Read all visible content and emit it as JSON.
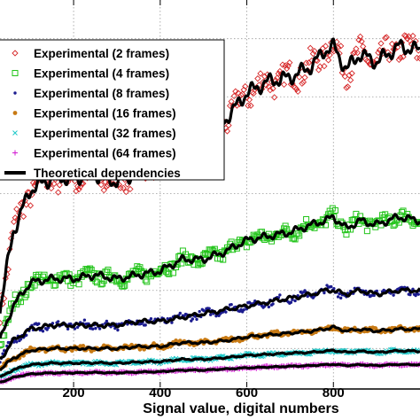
{
  "chart_data": {
    "type": "scatter",
    "xlabel": "Signal value, digital numbers",
    "ylabel": "",
    "xlim": [
      30,
      1000
    ],
    "ylim": [
      0,
      1
    ],
    "x_ticks": [
      200,
      400,
      600,
      800
    ],
    "x_tick_labels": [
      "200",
      "400",
      "600",
      "800"
    ],
    "grid": true,
    "legend_position": "top-left",
    "series": [
      {
        "name": "Experimental (2 frames)",
        "marker": "diamond-open",
        "color": "#d62728",
        "x": [
          30,
          60,
          100,
          150,
          200,
          250,
          300,
          350,
          400,
          450,
          500,
          550,
          600,
          650,
          700,
          750,
          780,
          800,
          830,
          860,
          900,
          950,
          1000
        ],
        "y": [
          0.2,
          0.4,
          0.51,
          0.54,
          0.54,
          0.55,
          0.53,
          0.56,
          0.58,
          0.65,
          0.66,
          0.69,
          0.76,
          0.79,
          0.8,
          0.83,
          0.87,
          0.88,
          0.82,
          0.86,
          0.84,
          0.88,
          0.87
        ]
      },
      {
        "name": "Experimental (4 frames)",
        "marker": "square-open",
        "color": "#22c41a",
        "x": [
          30,
          60,
          100,
          150,
          200,
          250,
          300,
          350,
          400,
          450,
          500,
          550,
          600,
          650,
          700,
          750,
          780,
          800,
          830,
          860,
          900,
          950,
          1000
        ],
        "y": [
          0.12,
          0.21,
          0.27,
          0.28,
          0.28,
          0.29,
          0.28,
          0.29,
          0.3,
          0.33,
          0.33,
          0.35,
          0.38,
          0.39,
          0.4,
          0.42,
          0.43,
          0.44,
          0.41,
          0.43,
          0.42,
          0.44,
          0.43
        ]
      },
      {
        "name": "Experimental (8 frames)",
        "marker": "dot",
        "color": "#1b1b8f",
        "x": [
          30,
          60,
          100,
          150,
          200,
          250,
          300,
          350,
          400,
          450,
          500,
          550,
          600,
          650,
          700,
          750,
          780,
          800,
          830,
          860,
          900,
          950,
          1000
        ],
        "y": [
          0.07,
          0.12,
          0.15,
          0.16,
          0.16,
          0.16,
          0.16,
          0.17,
          0.17,
          0.18,
          0.19,
          0.2,
          0.21,
          0.22,
          0.23,
          0.24,
          0.25,
          0.25,
          0.24,
          0.25,
          0.24,
          0.25,
          0.25
        ]
      },
      {
        "name": "Experimental (16 frames)",
        "marker": "circle-filled",
        "color": "#c87a14",
        "x": [
          30,
          60,
          100,
          150,
          200,
          250,
          300,
          350,
          400,
          450,
          500,
          550,
          600,
          650,
          700,
          750,
          780,
          800,
          830,
          860,
          900,
          950,
          1000
        ],
        "y": [
          0.045,
          0.075,
          0.095,
          0.1,
          0.1,
          0.1,
          0.1,
          0.105,
          0.105,
          0.115,
          0.115,
          0.12,
          0.13,
          0.135,
          0.14,
          0.145,
          0.15,
          0.155,
          0.145,
          0.15,
          0.145,
          0.15,
          0.15
        ]
      },
      {
        "name": "Experimental (32 frames)",
        "marker": "x",
        "color": "#1fc9c9",
        "x": [
          30,
          60,
          100,
          150,
          200,
          250,
          300,
          350,
          400,
          450,
          500,
          550,
          600,
          650,
          700,
          750,
          780,
          800,
          830,
          860,
          900,
          950,
          1000
        ],
        "y": [
          0.025,
          0.045,
          0.058,
          0.062,
          0.062,
          0.063,
          0.062,
          0.065,
          0.066,
          0.072,
          0.072,
          0.076,
          0.082,
          0.085,
          0.088,
          0.09,
          0.093,
          0.095,
          0.09,
          0.093,
          0.09,
          0.094,
          0.093
        ]
      },
      {
        "name": "Experimental (64 frames)",
        "marker": "plus",
        "color": "#d21ad2",
        "x": [
          30,
          60,
          100,
          150,
          200,
          250,
          300,
          350,
          400,
          450,
          500,
          550,
          600,
          650,
          700,
          750,
          780,
          800,
          830,
          860,
          900,
          950,
          1000
        ],
        "y": [
          0.012,
          0.025,
          0.034,
          0.037,
          0.037,
          0.038,
          0.037,
          0.039,
          0.04,
          0.044,
          0.044,
          0.047,
          0.05,
          0.052,
          0.054,
          0.056,
          0.058,
          0.059,
          0.056,
          0.058,
          0.056,
          0.059,
          0.058
        ]
      },
      {
        "name": "Theoretical dependencies",
        "marker": "line",
        "color": "#000000"
      }
    ]
  }
}
